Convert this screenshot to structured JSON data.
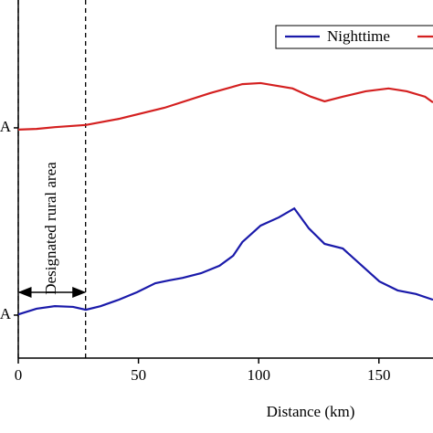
{
  "chart_data": {
    "type": "line",
    "xlabel": "Distance (km)",
    "xlim": [
      0,
      172.5
    ],
    "xticks": [
      0,
      50,
      100,
      150
    ],
    "ylim": [
      0,
      100
    ],
    "yticks": [
      {
        "value": 64.3,
        "label": "A"
      },
      {
        "value": 12,
        "label": "A"
      }
    ],
    "annotation": {
      "text": "Designated rural area",
      "x": [
        0,
        28
      ]
    },
    "series": [
      {
        "name": "Nighttime",
        "color": "#1a1aaa",
        "x": [
          0,
          7.6,
          15.2,
          22.8,
          28.1,
          34.2,
          41.8,
          49.4,
          57,
          62.7,
          68.4,
          76,
          83.7,
          89.4,
          93.2,
          100.8,
          108.4,
          114.8,
          120.9,
          127.4,
          135,
          142.6,
          150.2,
          157.8,
          165.4,
          172.5
        ],
        "values": [
          12.2,
          13.8,
          14.5,
          14.3,
          13.5,
          14.5,
          16.3,
          18.4,
          20.9,
          21.7,
          22.4,
          23.7,
          25.8,
          28.6,
          32.4,
          37.0,
          39.3,
          41.8,
          36.2,
          31.9,
          30.6,
          26.0,
          21.4,
          18.9,
          17.9,
          16.3
        ]
      },
      {
        "color": "#d42020",
        "x": [
          0,
          7.6,
          15.2,
          28.1,
          41.8,
          60.8,
          79.8,
          93.2,
          100.8,
          114.1,
          121.7,
          127.4,
          135,
          144.5,
          154,
          161.6,
          169.2,
          172.5
        ],
        "values": [
          63.8,
          64.0,
          64.5,
          65.1,
          66.8,
          69.9,
          74.0,
          76.5,
          76.8,
          75.3,
          73.0,
          71.7,
          73.0,
          74.5,
          75.3,
          74.5,
          73.0,
          71.4
        ]
      }
    ]
  }
}
